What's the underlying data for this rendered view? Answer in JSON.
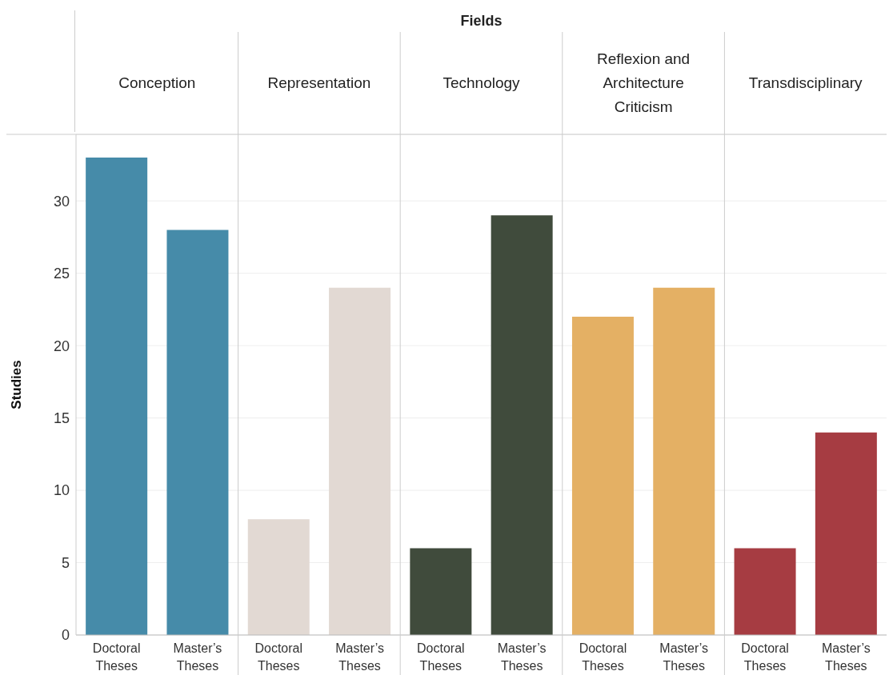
{
  "chart_data": {
    "type": "bar",
    "title": "Fields",
    "ylabel": "Studies",
    "categories": [
      "Doctoral Theses",
      "Master’s Theses",
      "Doctoral Theses",
      "Master’s Theses",
      "Doctoral Theses",
      "Master’s Theses",
      "Doctoral Theses",
      "Master’s Theses",
      "Doctoral Theses",
      "Master’s Theses"
    ],
    "values": [
      33,
      28,
      8,
      24,
      6,
      29,
      22,
      24,
      6,
      14
    ],
    "colors": [
      "#468ba9",
      "#468ba9",
      "#e2d9d3",
      "#e2d9d3",
      "#404b3c",
      "#404b3c",
      "#e4b064",
      "#e4b064",
      "#a63c42",
      "#a63c42"
    ],
    "annotations": [
      "Conception",
      "Representation",
      "Technology",
      "Reflexion and Architecture Criticism",
      "Transdisciplinary"
    ],
    "ylim": [
      0,
      34.6
    ],
    "yticks": [
      0,
      5,
      10,
      15,
      20,
      25,
      30
    ],
    "grid": "y"
  }
}
